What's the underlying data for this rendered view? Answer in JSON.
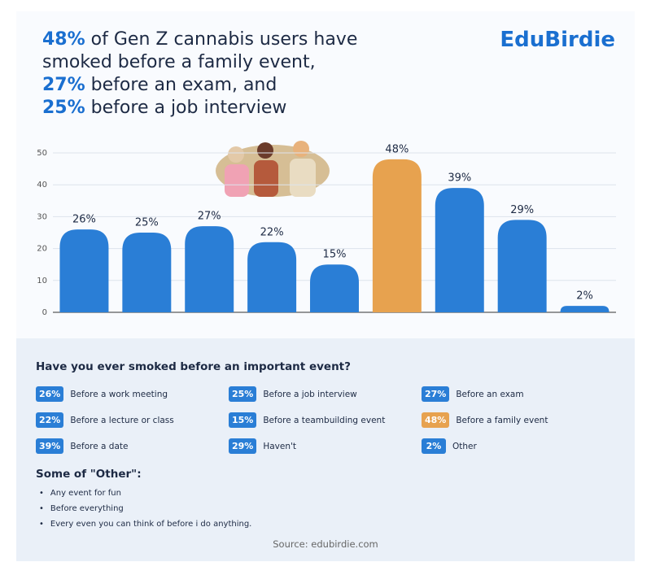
{
  "brand": "EduBirdie",
  "headline": [
    {
      "highlight": "48%",
      "text": "of Gen Z cannabis users have"
    },
    {
      "text": "smoked before a family event,"
    },
    {
      "highlight": "27%",
      "text": "before an exam, and"
    },
    {
      "highlight": "25%",
      "text": "before a job interview"
    }
  ],
  "chart_data": {
    "type": "bar",
    "categories": [
      "Before a work meeting",
      "Before a job interview",
      "Before an exam",
      "Before a lecture or class",
      "Before a teambuilding event",
      "Before a family event",
      "Before a date",
      "Haven't",
      "Other"
    ],
    "values": [
      26,
      25,
      27,
      22,
      15,
      48,
      39,
      29,
      2
    ],
    "value_labels": [
      "26%",
      "25%",
      "27%",
      "22%",
      "15%",
      "48%",
      "39%",
      "29%",
      "2%"
    ],
    "colors": [
      "#2a7ed6",
      "#2a7ed6",
      "#2a7ed6",
      "#2a7ed6",
      "#2a7ed6",
      "#e7a24f",
      "#2a7ed6",
      "#2a7ed6",
      "#2a7ed6"
    ],
    "ylim": [
      0,
      50
    ],
    "yticks": [
      0,
      10,
      20,
      30,
      40,
      50
    ],
    "grid": true
  },
  "legend_title": "Have you ever smoked before an important event?",
  "other_title": "Some of \"Other\":",
  "other_items": [
    "Any event for fun",
    "Before everything",
    "Every even you can think of before i do anything."
  ],
  "source": "Source: edubirdie.com"
}
